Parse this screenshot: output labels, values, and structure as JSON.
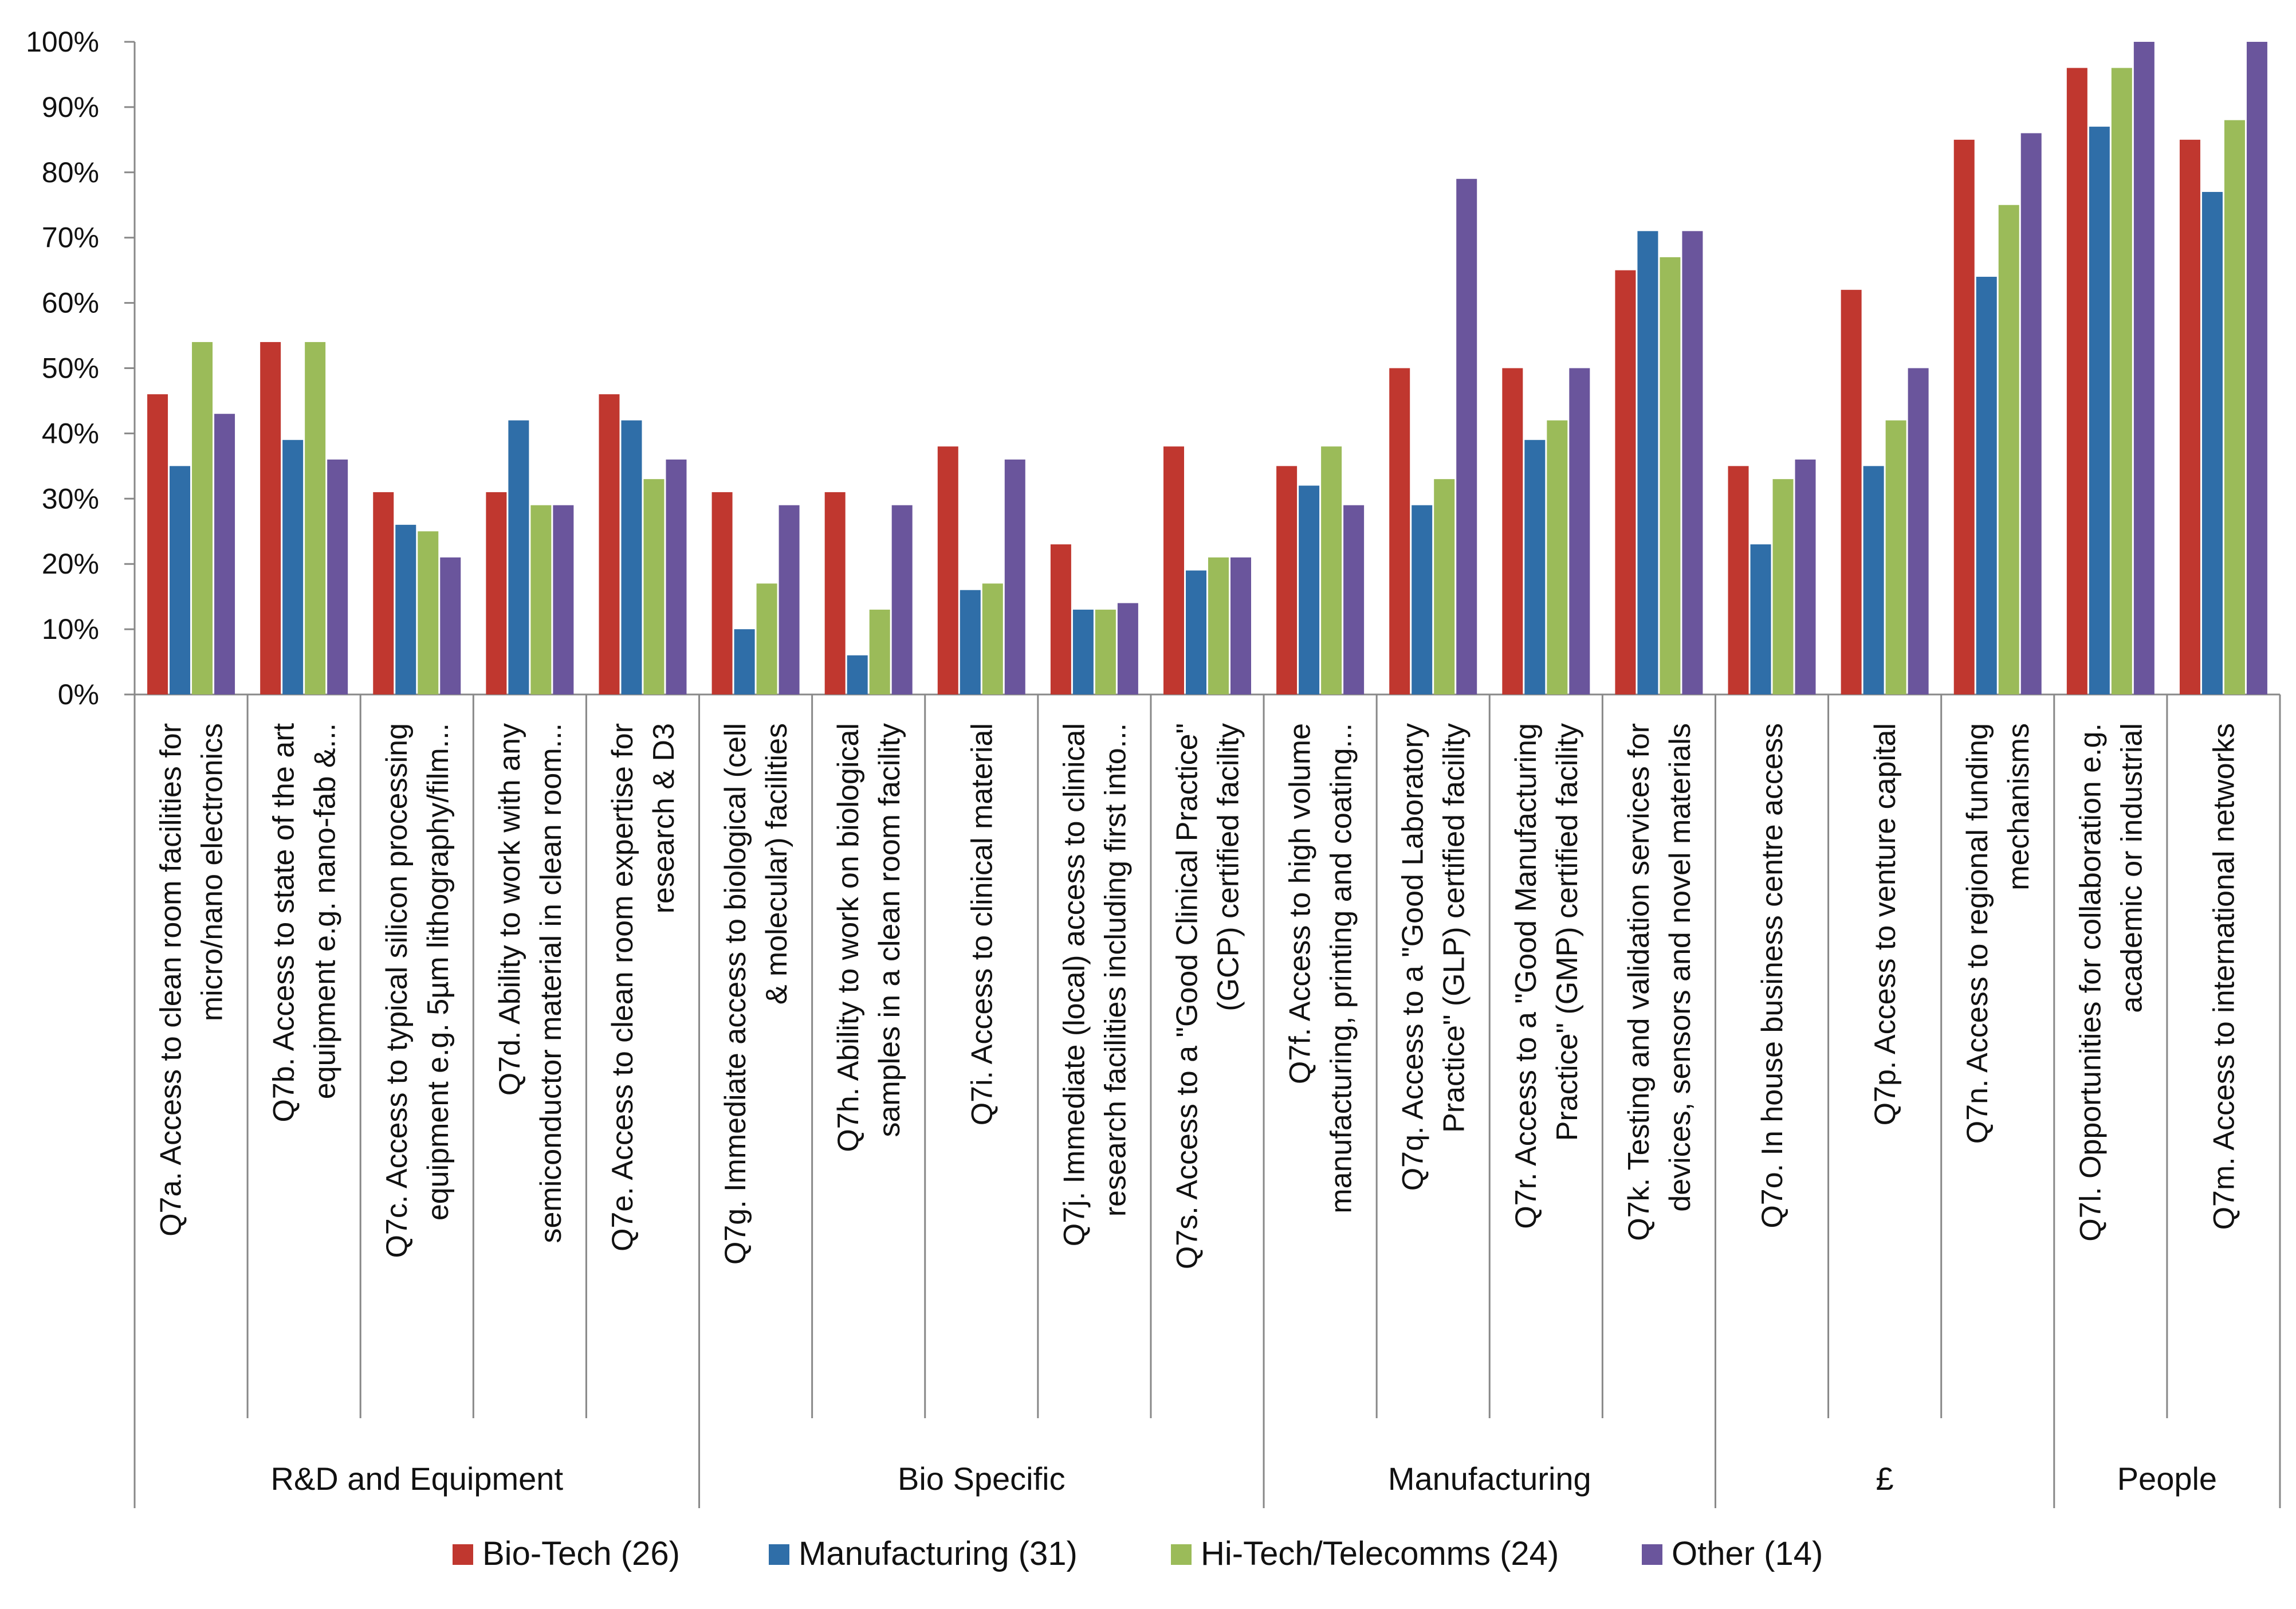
{
  "chart_data": {
    "type": "bar",
    "yticks": [
      "0%",
      "10%",
      "20%",
      "30%",
      "40%",
      "50%",
      "60%",
      "70%",
      "80%",
      "90%",
      "100%"
    ],
    "ylim": [
      0,
      100
    ],
    "grid": false,
    "legend_position": "bottom",
    "categories": [
      [
        "Q7a. Access to clean room facilities for",
        "micro/nano electronics"
      ],
      [
        "Q7b. Access to state of the art",
        "equipment e.g. nano-fab &..."
      ],
      [
        "Q7c. Access to typical silicon processing",
        "equipment e.g. 5µm lithography/film..."
      ],
      [
        "Q7d. Ability to work with any",
        "semiconductor material in clean room..."
      ],
      [
        "Q7e. Access to clean room expertise for",
        "research & D3"
      ],
      [
        "Q7g. Immediate access to biological (cell",
        "& molecular) facilities"
      ],
      [
        "Q7h. Ability to work on biological",
        "samples in a clean room facility"
      ],
      [
        "Q7i. Access to clinical material"
      ],
      [
        "Q7j. Immediate (local) access to clinical",
        "research facilities including first into..."
      ],
      [
        "Q7s. Access to a \"Good Clinical Practice\"",
        "(GCP) certified facility"
      ],
      [
        "Q7f. Access to high volume",
        "manufacturing, printing and coating..."
      ],
      [
        "Q7q. Access to a \"Good Laboratory",
        "Practice\" (GLP) certified facility"
      ],
      [
        "Q7r. Access to a \"Good Manufacturing",
        "Practice\" (GMP) certified facility"
      ],
      [
        "Q7k. Testing and validation services for",
        "devices, sensors and novel materials"
      ],
      [
        "Q7o. In house business centre access"
      ],
      [
        "Q7p. Access to venture capital"
      ],
      [
        "Q7n. Access to regional funding",
        "mechanisms"
      ],
      [
        "Q7l. Opportunities for collaboration e.g.",
        "academic or industrial"
      ],
      [
        "Q7m. Access to international networks"
      ]
    ],
    "groups": [
      {
        "label": "R&D and Equipment",
        "start": 0,
        "count": 5
      },
      {
        "label": "Bio Specific",
        "start": 5,
        "count": 5
      },
      {
        "label": "Manufacturing",
        "start": 10,
        "count": 4
      },
      {
        "label": "£",
        "start": 14,
        "count": 3
      },
      {
        "label": "People",
        "start": 17,
        "count": 2
      }
    ],
    "series": [
      {
        "name": "Bio-Tech (26)",
        "color": "#C0372F",
        "values": [
          46,
          54,
          31,
          31,
          46,
          31,
          31,
          38,
          23,
          38,
          35,
          50,
          50,
          65,
          35,
          62,
          85,
          96,
          85
        ]
      },
      {
        "name": "Manufacturing (31)",
        "color": "#2F6EA8",
        "values": [
          35,
          39,
          26,
          42,
          42,
          10,
          6,
          16,
          13,
          19,
          32,
          29,
          39,
          71,
          23,
          35,
          64,
          87,
          77
        ]
      },
      {
        "name": "Hi-Tech/Telecomms (24)",
        "color": "#9BBB59",
        "values": [
          54,
          54,
          25,
          29,
          33,
          17,
          13,
          17,
          13,
          21,
          38,
          33,
          42,
          67,
          33,
          42,
          75,
          96,
          88
        ]
      },
      {
        "name": "Other (14)",
        "color": "#6A559C",
        "values": [
          43,
          36,
          21,
          29,
          36,
          29,
          29,
          36,
          14,
          21,
          29,
          79,
          50,
          71,
          36,
          50,
          86,
          100,
          100
        ]
      }
    ]
  }
}
